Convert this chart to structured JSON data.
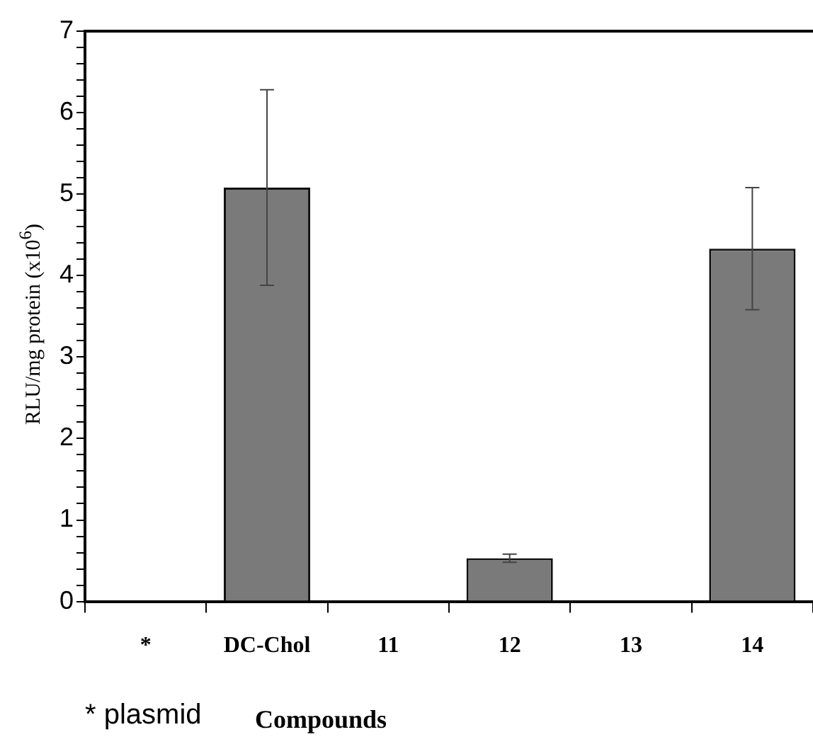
{
  "chart_data": {
    "type": "bar",
    "categories": [
      "*",
      "DC-Chol",
      "11",
      "12",
      "13",
      "14"
    ],
    "values": [
      0,
      5.08,
      0,
      0.53,
      0,
      4.33
    ],
    "errors": [
      null,
      1.2,
      null,
      0.05,
      null,
      0.75
    ],
    "color": "#7a7a7a",
    "xlabel": "Compounds",
    "ylabel": "RLU/mg protein (x10$^{6}$)",
    "annotations": [
      "* plasmid"
    ],
    "ylim": [
      0,
      7
    ],
    "yticks": [
      0,
      {
        "value": 0.2,
        "label": null
      },
      {
        "value": 0.4,
        "label": null
      },
      {
        "value": 0.6,
        "label": null
      },
      {
        "value": 0.8,
        "label": null
      },
      1,
      {
        "value": 1.2,
        "label": null
      },
      {
        "value": 1.4,
        "label": null
      },
      {
        "value": 1.6,
        "label": null
      },
      {
        "value": 1.8,
        "label": null
      },
      2,
      {
        "value": 2.2,
        "label": null
      },
      {
        "value": 2.4,
        "label": null
      },
      {
        "value": 2.6,
        "label": null
      },
      {
        "value": 2.8,
        "label": null
      },
      3,
      {
        "value": 3.2,
        "label": null
      },
      {
        "value": 3.4,
        "label": null
      },
      {
        "value": 3.6,
        "label": null
      },
      {
        "value": 3.8,
        "label": null
      },
      4,
      {
        "value": 4.2,
        "label": null
      },
      {
        "value": 4.4,
        "label": null
      },
      {
        "value": 4.6,
        "label": null
      },
      {
        "value": 4.8,
        "label": null
      },
      5,
      {
        "value": 5.2,
        "label": null
      },
      {
        "value": 5.4,
        "label": null
      },
      {
        "value": 5.6,
        "label": null
      },
      {
        "value": 5.8,
        "label": null
      },
      6,
      {
        "value": 6.2,
        "label": null
      },
      {
        "value": 6.4,
        "label": null
      },
      {
        "value": 6.6,
        "label": null
      },
      {
        "value": 6.8,
        "label": null
      },
      7
    ],
    "grid": false
  }
}
